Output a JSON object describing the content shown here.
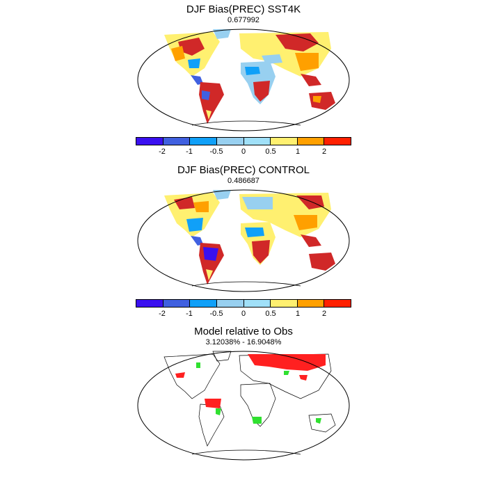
{
  "panels": [
    {
      "title": "DJF Bias(PREC) SST4K",
      "subtitle": "0.677992"
    },
    {
      "title": "DJF Bias(PREC) CONTROL",
      "subtitle": "0.486687"
    },
    {
      "title": "Model relative to Obs",
      "subtitle": "3.12038% - 16.9048%"
    }
  ],
  "colorbar": {
    "colors": [
      "#3a10f0",
      "#4060e0",
      "#10a0f8",
      "#98d0f0",
      "#a0e0f8",
      "#fff070",
      "#ffa000",
      "#ff2000",
      "#d02828"
    ],
    "tick_labels": [
      "-2",
      "-1",
      "-0.5",
      "0",
      "0.5",
      "1",
      "2"
    ]
  },
  "legend_colors": {
    "land_wet": "#ff2020",
    "land_dry": "#30e030",
    "bg": "#ffffff",
    "outline": "#000000"
  }
}
